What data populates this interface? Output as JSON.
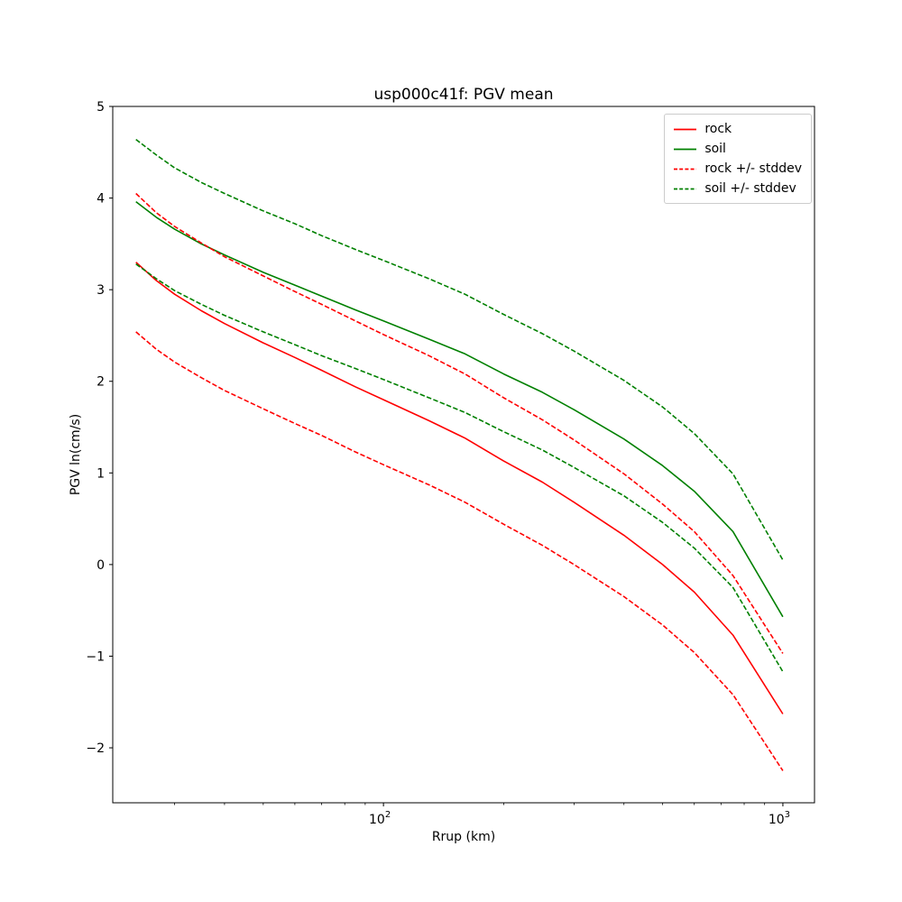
{
  "figure": {
    "title": "usp000c41f: PGV mean"
  },
  "axes": {
    "xlabel": "Rrup (km)",
    "ylabel": "PGV ln(cm/s)",
    "xscale": "log",
    "grid": false,
    "xlim": [
      21,
      1200
    ],
    "ylim": [
      -2.6,
      5.0
    ],
    "yticks": [
      {
        "value": 5,
        "label": "5"
      },
      {
        "value": 4,
        "label": "4"
      },
      {
        "value": 3,
        "label": "3"
      },
      {
        "value": 2,
        "label": "2"
      },
      {
        "value": 1,
        "label": "1"
      },
      {
        "value": 0,
        "label": "0"
      },
      {
        "value": -1,
        "label": "−1"
      },
      {
        "value": -2,
        "label": "−2"
      }
    ],
    "xticks": [
      {
        "value": 100,
        "base": "10",
        "exp": "2"
      },
      {
        "value": 1000,
        "base": "10",
        "exp": "3"
      }
    ],
    "xminor": [
      30,
      40,
      50,
      60,
      70,
      80,
      90,
      200,
      300,
      400,
      500,
      600,
      700,
      800,
      900
    ]
  },
  "legend": {
    "position": "upper right",
    "items": [
      {
        "label": "rock",
        "color": "#ff0000",
        "dashed": false
      },
      {
        "label": "soil",
        "color": "#008000",
        "dashed": false
      },
      {
        "label": "rock +/- stddev",
        "color": "#ff0000",
        "dashed": true
      },
      {
        "label": "soil +/- stddev",
        "color": "#008000",
        "dashed": true
      }
    ]
  },
  "chart_data": {
    "type": "line",
    "title": "usp000c41f: PGV mean",
    "xlabel": "Rrup (km)",
    "ylabel": "PGV ln(cm/s)",
    "xscale": "log",
    "xlim": [
      21,
      1200
    ],
    "ylim": [
      -2.6,
      5.0
    ],
    "legend_position": "upper right",
    "grid": false,
    "x": [
      24,
      27,
      30,
      35,
      40,
      50,
      60,
      70,
      85,
      100,
      130,
      160,
      200,
      250,
      300,
      400,
      500,
      600,
      750,
      1000
    ],
    "series": [
      {
        "name": "rock",
        "color": "#ff0000",
        "dashed": false,
        "values": [
          3.3,
          3.1,
          2.95,
          2.77,
          2.63,
          2.42,
          2.26,
          2.12,
          1.94,
          1.8,
          1.57,
          1.38,
          1.13,
          0.9,
          0.68,
          0.32,
          0.0,
          -0.3,
          -0.77,
          -1.63
        ]
      },
      {
        "name": "soil",
        "color": "#008000",
        "dashed": false,
        "values": [
          3.96,
          3.79,
          3.66,
          3.5,
          3.38,
          3.19,
          3.05,
          2.93,
          2.78,
          2.66,
          2.46,
          2.3,
          2.08,
          1.88,
          1.69,
          1.37,
          1.08,
          0.8,
          0.36,
          -0.57
        ]
      },
      {
        "name": "rock + stddev",
        "color": "#ff0000",
        "dashed": true,
        "values": [
          4.05,
          3.84,
          3.69,
          3.51,
          3.36,
          3.15,
          2.98,
          2.84,
          2.66,
          2.51,
          2.28,
          2.08,
          1.82,
          1.58,
          1.36,
          0.99,
          0.66,
          0.36,
          -0.12,
          -0.97
        ]
      },
      {
        "name": "rock - stddev",
        "color": "#ff0000",
        "dashed": true,
        "values": [
          2.54,
          2.35,
          2.21,
          2.04,
          1.9,
          1.7,
          1.54,
          1.41,
          1.23,
          1.09,
          0.87,
          0.68,
          0.44,
          0.21,
          0.0,
          -0.35,
          -0.66,
          -0.96,
          -1.42,
          -2.25
        ]
      },
      {
        "name": "soil + stddev",
        "color": "#008000",
        "dashed": true,
        "values": [
          4.64,
          4.47,
          4.33,
          4.17,
          4.05,
          3.86,
          3.72,
          3.59,
          3.44,
          3.32,
          3.12,
          2.95,
          2.73,
          2.52,
          2.33,
          2.01,
          1.72,
          1.43,
          0.99,
          0.05
        ]
      },
      {
        "name": "soil - stddev",
        "color": "#008000",
        "dashed": true,
        "values": [
          3.28,
          3.12,
          2.99,
          2.84,
          2.72,
          2.54,
          2.4,
          2.28,
          2.14,
          2.02,
          1.82,
          1.66,
          1.45,
          1.25,
          1.06,
          0.75,
          0.46,
          0.18,
          -0.25,
          -1.17
        ]
      }
    ]
  }
}
